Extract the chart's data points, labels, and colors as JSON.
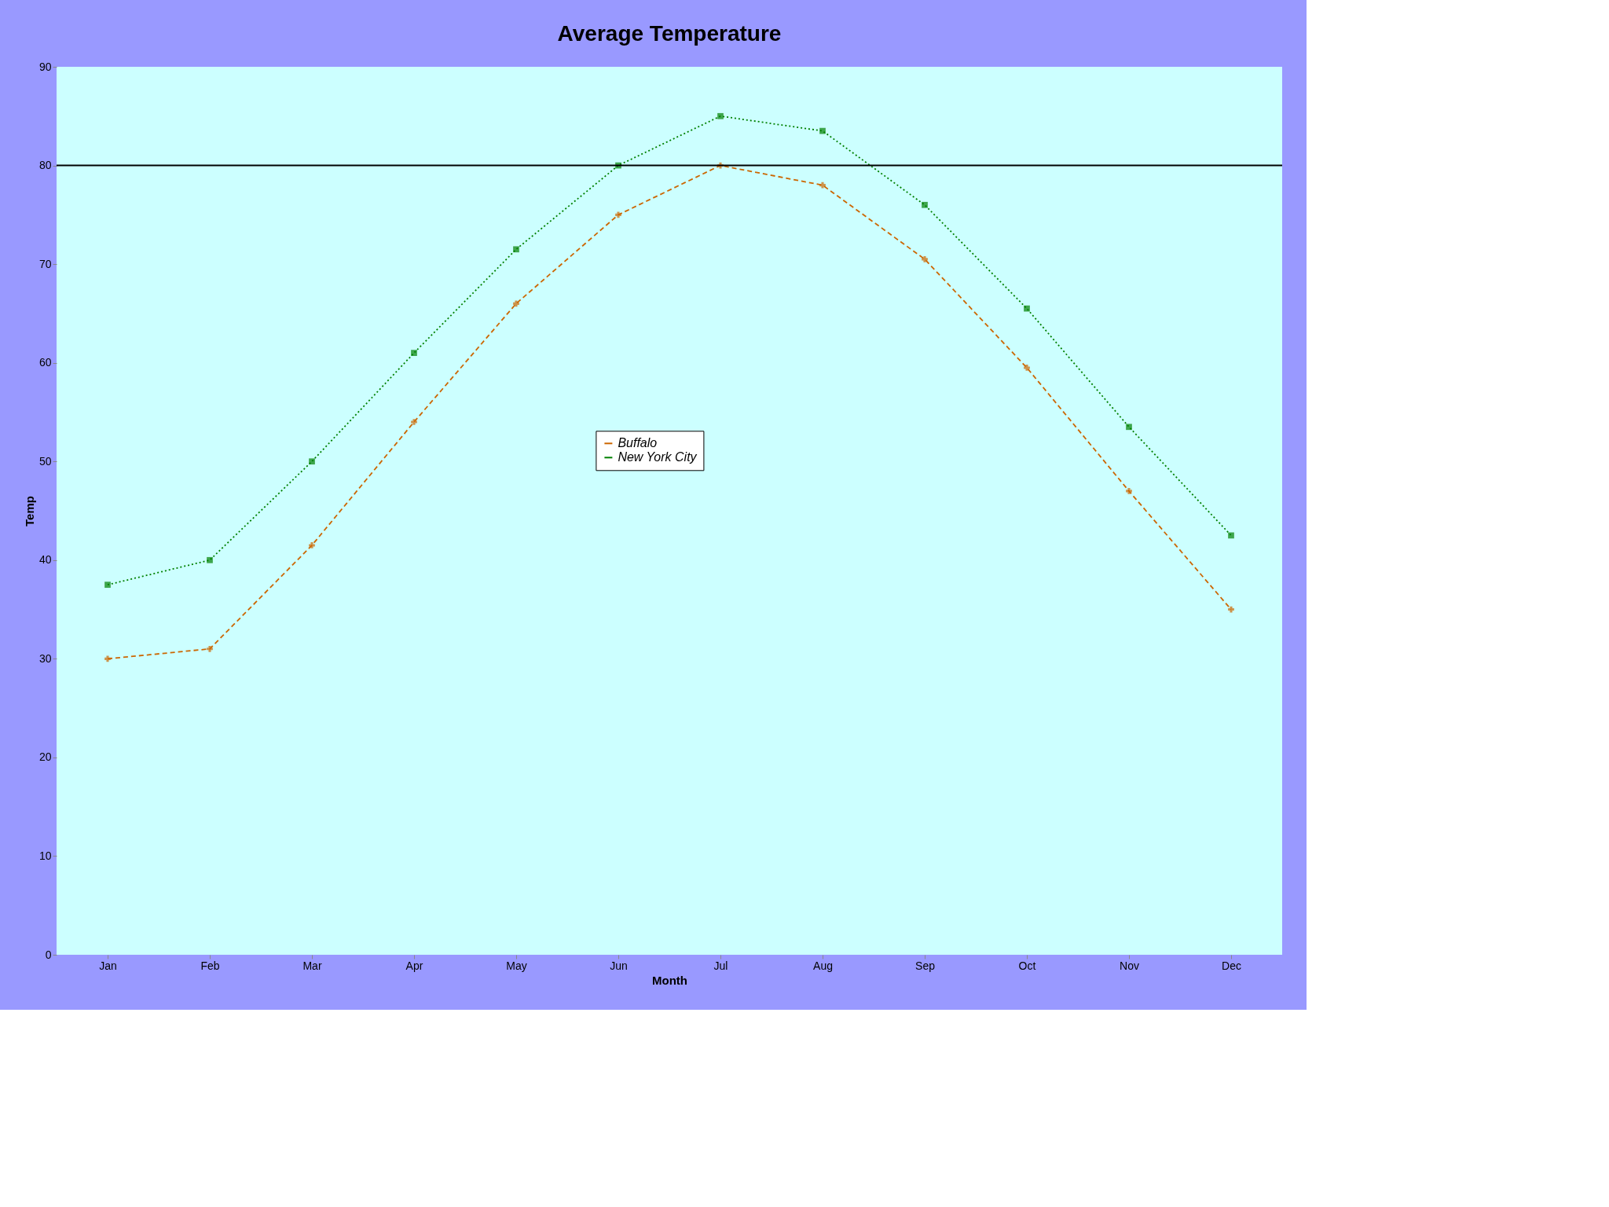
{
  "chart_data": {
    "type": "line",
    "title": "Average Temperature",
    "xlabel": "Month",
    "ylabel": "Temp",
    "categories": [
      "Jan",
      "Feb",
      "Mar",
      "Apr",
      "May",
      "Jun",
      "Jul",
      "Aug",
      "Sep",
      "Oct",
      "Nov",
      "Dec"
    ],
    "series": [
      {
        "name": "Buffalo",
        "color": "#cc6600",
        "marker": "cross",
        "line_style": "dashed",
        "values": [
          30,
          31,
          41.5,
          54,
          66,
          75,
          80,
          78,
          70.5,
          59.5,
          47,
          35
        ]
      },
      {
        "name": "New York City",
        "color": "#008000",
        "marker": "square",
        "line_style": "dotted",
        "values": [
          37.5,
          40,
          50,
          61,
          71.5,
          80,
          85,
          83.5,
          76,
          65.5,
          53.5,
          42.5
        ]
      }
    ],
    "ylim": [
      0,
      90
    ],
    "yticks": [
      0,
      10,
      20,
      30,
      40,
      50,
      60,
      70,
      80,
      90
    ],
    "ref_lines": [
      {
        "axis": "y",
        "value": 80,
        "color": "#000000"
      }
    ],
    "grid": false,
    "legend": "center"
  }
}
